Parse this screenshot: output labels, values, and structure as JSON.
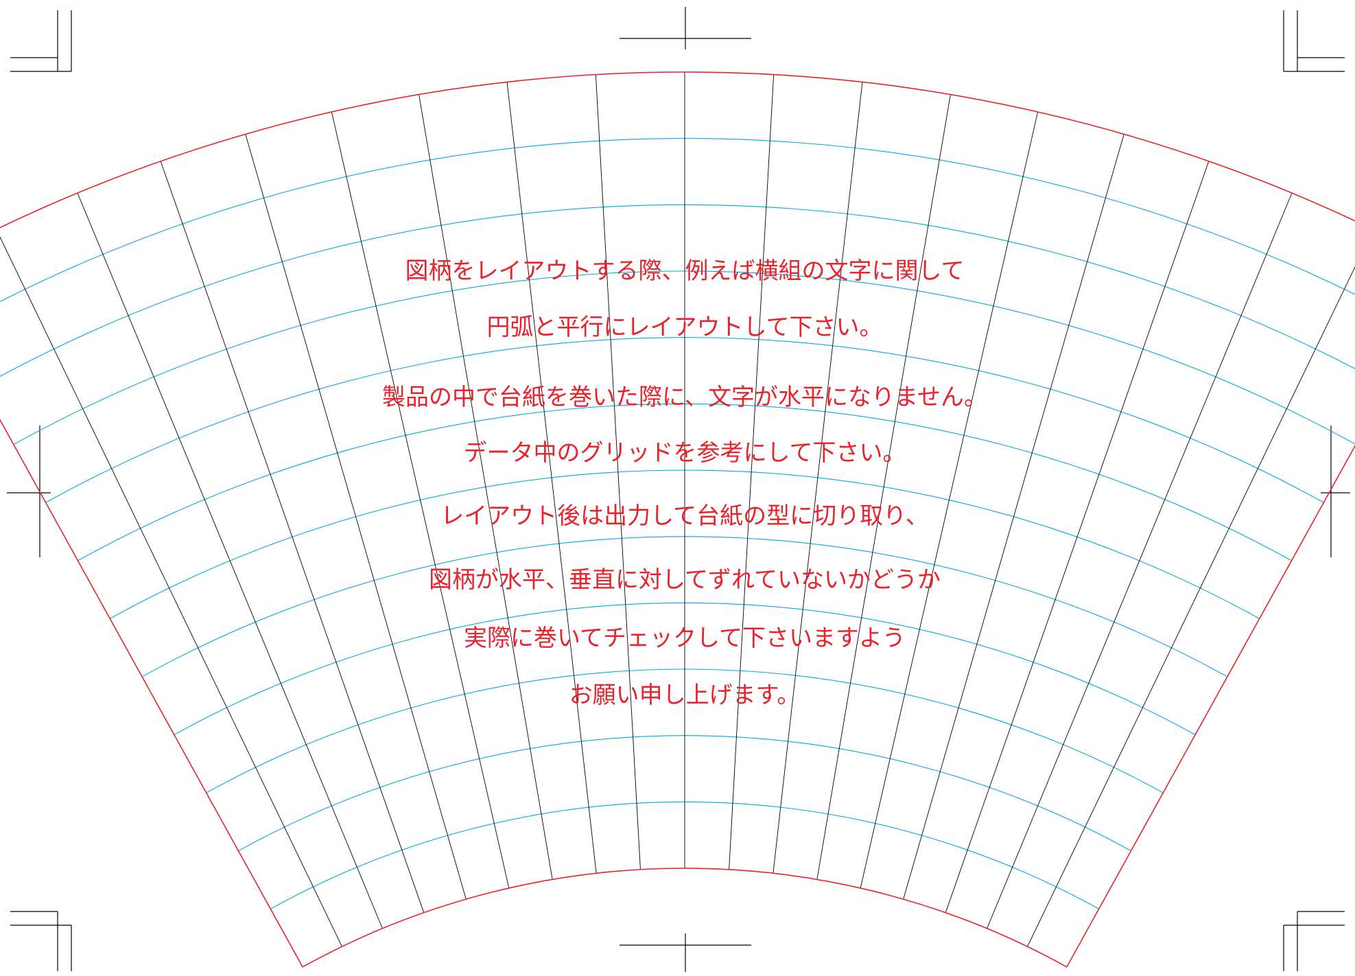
{
  "template": {
    "outline_color": "#e8232b",
    "vertical_grid_color": "#000000",
    "arc_grid_color": "#00a8e6",
    "text_color": "#e8232b",
    "vertical_division_count": 18,
    "arc_division_count": 12
  },
  "instructions": [
    "図柄をレイアウトする際、例えば横組の文字に関して",
    "円弧と平行にレイアウトして下さい。",
    "製品の中で台紙を巻いた際に、文字が水平になりません。",
    "データ中のグリッドを参考にして下さい。",
    "レイアウト後は出力して台紙の型に切り取り、",
    "図柄が水平、垂直に対してずれていないかどうか",
    "実際に巻いてチェックして下さいますよう",
    "お願い申し上げます。"
  ]
}
